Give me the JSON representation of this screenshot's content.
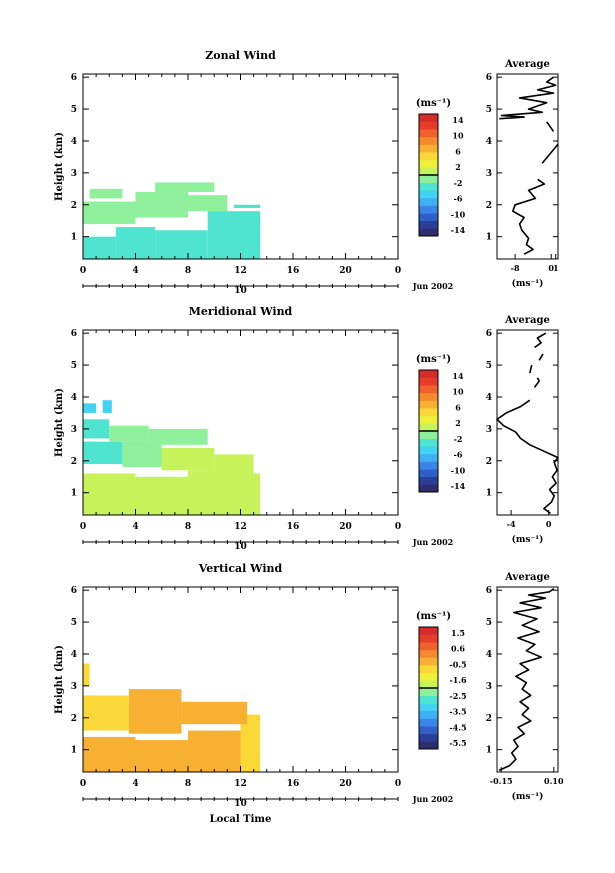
{
  "figure": {
    "date_label": "Jun 2002",
    "day_label": "10",
    "bottom_xlabel": "Local Time"
  },
  "panels": [
    {
      "title": "Zonal Wind",
      "ylabel": "Height (km)",
      "xticks": [
        "0",
        "4",
        "8",
        "12",
        "16",
        "20",
        "0"
      ],
      "yticks": [
        "1",
        "2",
        "3",
        "4",
        "5",
        "6"
      ],
      "cbar_unit": "(ms⁻¹)",
      "cbar_ticks": [
        "14",
        "10",
        "6",
        "2",
        "-2",
        "-6",
        "-10",
        "-14"
      ],
      "avg_title": "Average",
      "avg_xticks": [
        "-8",
        "0",
        "1"
      ],
      "avg_xlabel": "(ms⁻¹)",
      "avg_yticks": [
        "1",
        "2",
        "3",
        "4",
        "5",
        "6"
      ]
    },
    {
      "title": "Meridional Wind",
      "ylabel": "Height (km)",
      "xticks": [
        "0",
        "4",
        "8",
        "12",
        "16",
        "20",
        "0"
      ],
      "yticks": [
        "1",
        "2",
        "3",
        "4",
        "5",
        "6"
      ],
      "cbar_unit": "(ms⁻¹)",
      "cbar_ticks": [
        "14",
        "10",
        "6",
        "2",
        "-2",
        "-6",
        "-10",
        "-14"
      ],
      "avg_title": "Average",
      "avg_xticks": [
        "-4",
        "0"
      ],
      "avg_xlabel": "(ms⁻¹)",
      "avg_yticks": [
        "1",
        "2",
        "3",
        "4",
        "5",
        "6"
      ]
    },
    {
      "title": "Vertical Wind",
      "ylabel": "Height (km)",
      "xticks": [
        "0",
        "4",
        "8",
        "12",
        "16",
        "20",
        "0"
      ],
      "yticks": [
        "1",
        "2",
        "3",
        "4",
        "5",
        "6"
      ],
      "cbar_unit": "(ms⁻¹)",
      "cbar_ticks": [
        "1.5",
        "0.6",
        "-0.5",
        "-1.6",
        "-2.5",
        "-3.5",
        "-4.5",
        "-5.5"
      ],
      "avg_title": "Average",
      "avg_xticks": [
        "-0.15",
        "0.10"
      ],
      "avg_xlabel": "(ms⁻¹)",
      "avg_yticks": [
        "1",
        "2",
        "3",
        "4",
        "5",
        "6"
      ]
    }
  ],
  "chart_data": [
    {
      "type": "heatmap",
      "title": "Zonal Wind",
      "ylabel": "Height (km)",
      "xlim": [
        0,
        24
      ],
      "ylim": [
        0.3,
        6.1
      ],
      "cbar_range": [
        -16,
        16
      ],
      "data_coverage": {
        "t_end": 13.5,
        "h_top": 2.7
      },
      "cells": [
        {
          "t": [
            0,
            2.5
          ],
          "h": [
            0.3,
            1.0
          ],
          "v": -2.5
        },
        {
          "t": [
            2.5,
            5.5
          ],
          "h": [
            0.3,
            1.3
          ],
          "v": -3.5
        },
        {
          "t": [
            5.5,
            9.5
          ],
          "h": [
            0.3,
            1.2
          ],
          "v": -3.0
        },
        {
          "t": [
            9.5,
            13.5
          ],
          "h": [
            0.3,
            1.8
          ],
          "v": -4.0
        },
        {
          "t": [
            0,
            4.0
          ],
          "h": [
            1.4,
            2.1
          ],
          "v": -2.0
        },
        {
          "t": [
            4.0,
            8.0
          ],
          "h": [
            1.6,
            2.4
          ],
          "v": -1.0
        },
        {
          "t": [
            8.0,
            11.0
          ],
          "h": [
            1.8,
            2.3
          ],
          "v": -1.5
        },
        {
          "t": [
            11.5,
            13.5
          ],
          "h": [
            1.9,
            2.0
          ],
          "v": -3.0
        },
        {
          "t": [
            0.5,
            3.0
          ],
          "h": [
            2.2,
            2.5
          ],
          "v": -1.5
        },
        {
          "t": [
            5.5,
            10.0
          ],
          "h": [
            2.4,
            2.7
          ],
          "v": -0.5
        }
      ],
      "average_profile": {
        "xlim": [
          -12,
          1.5
        ],
        "segments": [
          [
            [
              -6.0,
              0.45
            ],
            [
              -4.0,
              0.6
            ],
            [
              -5.5,
              0.75
            ],
            [
              -5.0,
              0.95
            ],
            [
              -6.5,
              1.2
            ],
            [
              -7.0,
              1.4
            ],
            [
              -6.0,
              1.6
            ],
            [
              -8.5,
              1.8
            ],
            [
              -8.0,
              2.0
            ],
            [
              -3.5,
              2.2
            ],
            [
              -5.0,
              2.45
            ],
            [
              -1.5,
              2.65
            ],
            [
              -3.0,
              2.8
            ]
          ],
          [
            [
              -2.0,
              3.3
            ],
            [
              1.5,
              3.9
            ]
          ],
          [
            [
              -1.0,
              4.6
            ],
            [
              0.5,
              4.3
            ]
          ],
          [
            [
              -11.5,
              4.7
            ],
            [
              -6.0,
              4.75
            ],
            [
              -11.0,
              4.8
            ],
            [
              -2.0,
              4.9
            ],
            [
              -5.0,
              5.0
            ],
            [
              -1.0,
              5.2
            ],
            [
              -7.0,
              5.35
            ],
            [
              0.5,
              5.5
            ],
            [
              -3.0,
              5.6
            ],
            [
              1.0,
              5.75
            ],
            [
              -1.0,
              5.85
            ],
            [
              0.5,
              6.0
            ]
          ]
        ]
      }
    },
    {
      "type": "heatmap",
      "title": "Meridional Wind",
      "ylabel": "Height (km)",
      "xlim": [
        0,
        24
      ],
      "ylim": [
        0.3,
        6.1
      ],
      "cbar_range": [
        -16,
        16
      ],
      "data_coverage": {
        "t_end": 13.5,
        "h_top": 3.4
      },
      "cells": [
        {
          "t": [
            0,
            4.0
          ],
          "h": [
            0.3,
            1.6
          ],
          "v": 1.0
        },
        {
          "t": [
            4.0,
            8.0
          ],
          "h": [
            0.3,
            1.5
          ],
          "v": 0.5
        },
        {
          "t": [
            8.0,
            11.5
          ],
          "h": [
            0.3,
            1.7
          ],
          "v": 1.5
        },
        {
          "t": [
            11.5,
            13.5
          ],
          "h": [
            0.3,
            1.6
          ],
          "v": 0.5
        },
        {
          "t": [
            0,
            3.0
          ],
          "h": [
            1.9,
            2.6
          ],
          "v": -2.5
        },
        {
          "t": [
            3.0,
            6.0
          ],
          "h": [
            1.8,
            2.6
          ],
          "v": -1.5
        },
        {
          "t": [
            6.0,
            10.0
          ],
          "h": [
            1.7,
            2.4
          ],
          "v": 1.0
        },
        {
          "t": [
            10.0,
            13.0
          ],
          "h": [
            1.6,
            2.2
          ],
          "v": 1.5
        },
        {
          "t": [
            0,
            2.0
          ],
          "h": [
            2.7,
            3.3
          ],
          "v": -3.0
        },
        {
          "t": [
            2.0,
            5.0
          ],
          "h": [
            2.6,
            3.1
          ],
          "v": -2.0
        },
        {
          "t": [
            5.0,
            9.5
          ],
          "h": [
            2.5,
            3.0
          ],
          "v": -0.5
        },
        {
          "t": [
            0,
            1.0
          ],
          "h": [
            3.5,
            3.8
          ],
          "v": -5.0
        },
        {
          "t": [
            1.5,
            2.2
          ],
          "h": [
            3.5,
            3.9
          ],
          "v": -5.5
        }
      ],
      "average_profile": {
        "xlim": [
          -5.5,
          1.0
        ],
        "segments": [
          [
            [
              0.2,
              0.35
            ],
            [
              -0.5,
              0.5
            ],
            [
              0.3,
              0.7
            ],
            [
              0.6,
              0.9
            ],
            [
              0.1,
              1.1
            ],
            [
              0.8,
              1.3
            ],
            [
              0.4,
              1.5
            ],
            [
              0.9,
              1.7
            ],
            [
              0.6,
              1.95
            ],
            [
              1.0,
              2.1
            ],
            [
              -0.5,
              2.3
            ],
            [
              -2.0,
              2.5
            ],
            [
              -3.0,
              2.7
            ],
            [
              -3.5,
              2.9
            ],
            [
              -4.8,
              3.1
            ],
            [
              -5.5,
              3.3
            ],
            [
              -4.5,
              3.5
            ],
            [
              -3.0,
              3.7
            ],
            [
              -2.0,
              3.9
            ]
          ],
          [
            [
              -1.5,
              4.3
            ],
            [
              -1.0,
              4.5
            ],
            [
              -1.2,
              4.6
            ]
          ],
          [
            [
              -2.0,
              4.75
            ],
            [
              -1.8,
              5.0
            ]
          ],
          [
            [
              -1.0,
              5.15
            ],
            [
              -0.6,
              5.35
            ]
          ],
          [
            [
              -1.5,
              5.55
            ],
            [
              -0.8,
              5.7
            ],
            [
              -1.2,
              5.85
            ],
            [
              -0.3,
              6.0
            ]
          ]
        ]
      }
    },
    {
      "type": "heatmap",
      "title": "Vertical Wind",
      "ylabel": "Height (km)",
      "xlim": [
        0,
        24
      ],
      "ylim": [
        0.3,
        6.1
      ],
      "cbar_range": [
        -6.0,
        2.0
      ],
      "data_coverage": {
        "t_end": 13.5,
        "h_top": 3.7
      },
      "cells": [
        {
          "t": [
            0,
            4.0
          ],
          "h": [
            0.3,
            1.4
          ],
          "v": -0.3
        },
        {
          "t": [
            4.0,
            8.0
          ],
          "h": [
            0.3,
            1.3
          ],
          "v": -0.5
        },
        {
          "t": [
            8.0,
            12.0
          ],
          "h": [
            0.3,
            1.6
          ],
          "v": -0.4
        },
        {
          "t": [
            12.0,
            13.5
          ],
          "h": [
            0.3,
            2.1
          ],
          "v": -0.7
        },
        {
          "t": [
            0,
            3.5
          ],
          "h": [
            1.6,
            2.7
          ],
          "v": -0.6
        },
        {
          "t": [
            3.5,
            7.5
          ],
          "h": [
            1.5,
            2.9
          ],
          "v": -0.4
        },
        {
          "t": [
            7.5,
            12.5
          ],
          "h": [
            1.8,
            2.5
          ],
          "v": -0.5
        },
        {
          "t": [
            0,
            0.5
          ],
          "h": [
            3.0,
            3.7
          ],
          "v": -0.8
        }
      ],
      "average_profile": {
        "xlim": [
          -0.17,
          0.12
        ],
        "segments": [
          [
            [
              -0.16,
              0.35
            ],
            [
              -0.11,
              0.5
            ],
            [
              -0.08,
              0.7
            ],
            [
              -0.1,
              0.9
            ],
            [
              -0.07,
              1.1
            ],
            [
              -0.09,
              1.3
            ],
            [
              -0.04,
              1.5
            ],
            [
              -0.07,
              1.7
            ],
            [
              -0.01,
              1.9
            ],
            [
              -0.05,
              2.1
            ],
            [
              -0.02,
              2.3
            ],
            [
              -0.06,
              2.5
            ],
            [
              -0.01,
              2.7
            ],
            [
              -0.05,
              2.9
            ],
            [
              -0.03,
              3.1
            ],
            [
              -0.08,
              3.3
            ],
            [
              -0.02,
              3.5
            ],
            [
              -0.06,
              3.7
            ],
            [
              0.04,
              3.9
            ],
            [
              -0.03,
              4.1
            ],
            [
              0.01,
              4.3
            ],
            [
              -0.07,
              4.5
            ],
            [
              0.03,
              4.7
            ],
            [
              -0.05,
              4.9
            ],
            [
              0.02,
              5.1
            ],
            [
              -0.09,
              5.3
            ],
            [
              0.04,
              5.45
            ],
            [
              -0.06,
              5.6
            ],
            [
              0.06,
              5.75
            ],
            [
              -0.02,
              5.85
            ],
            [
              0.08,
              5.95
            ],
            [
              0.1,
              6.05
            ]
          ]
        ]
      }
    }
  ]
}
